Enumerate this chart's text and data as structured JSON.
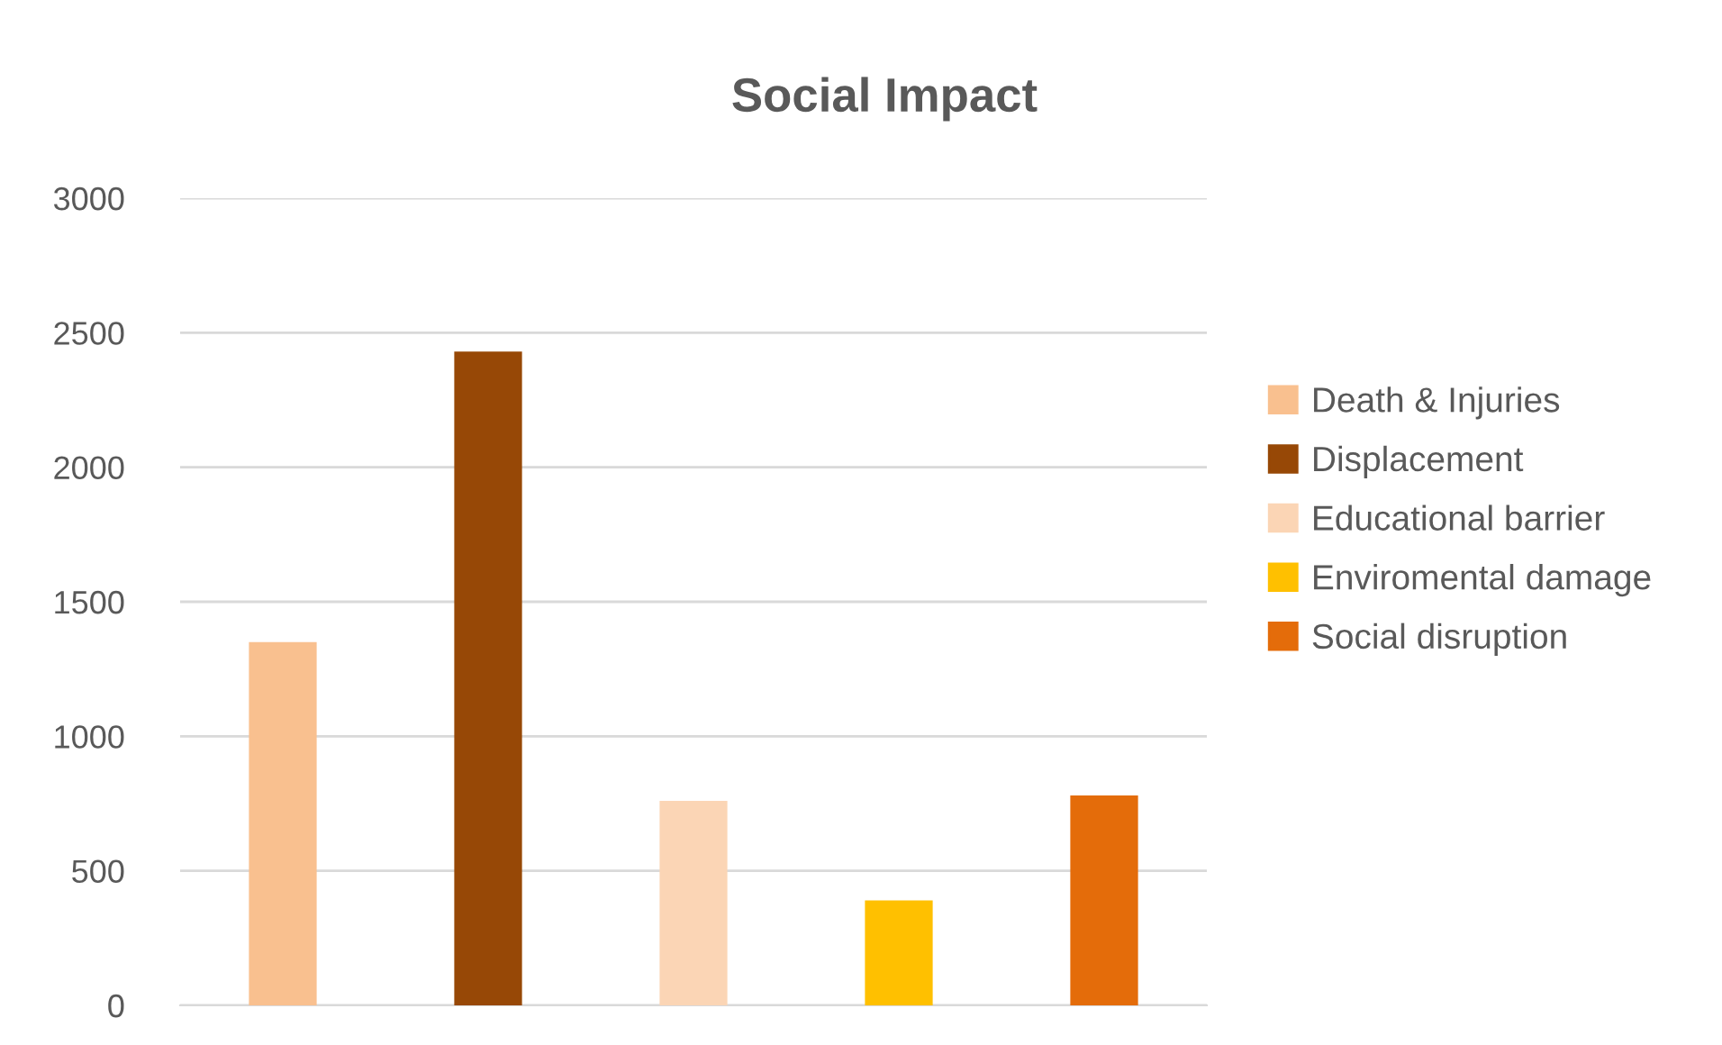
{
  "chart_data": {
    "type": "bar",
    "title": "Social Impact",
    "categories": [
      null
    ],
    "series": [
      {
        "name": "Death & Injuries",
        "color": "#f9c08f",
        "values": [
          1350
        ]
      },
      {
        "name": "Displacement",
        "color": "#974806",
        "values": [
          2430
        ]
      },
      {
        "name": "Educational barrier",
        "color": "#fbd5b5",
        "values": [
          760
        ]
      },
      {
        "name": "Enviromental damage",
        "color": "#ffc000",
        "values": [
          390
        ]
      },
      {
        "name": "Social disruption",
        "color": "#e46c0a",
        "values": [
          780
        ]
      }
    ],
    "ylim": [
      0,
      3000
    ],
    "yticks": [
      0,
      500,
      1000,
      1500,
      2000,
      2500,
      3000
    ],
    "grid": "y",
    "legend": "right"
  }
}
